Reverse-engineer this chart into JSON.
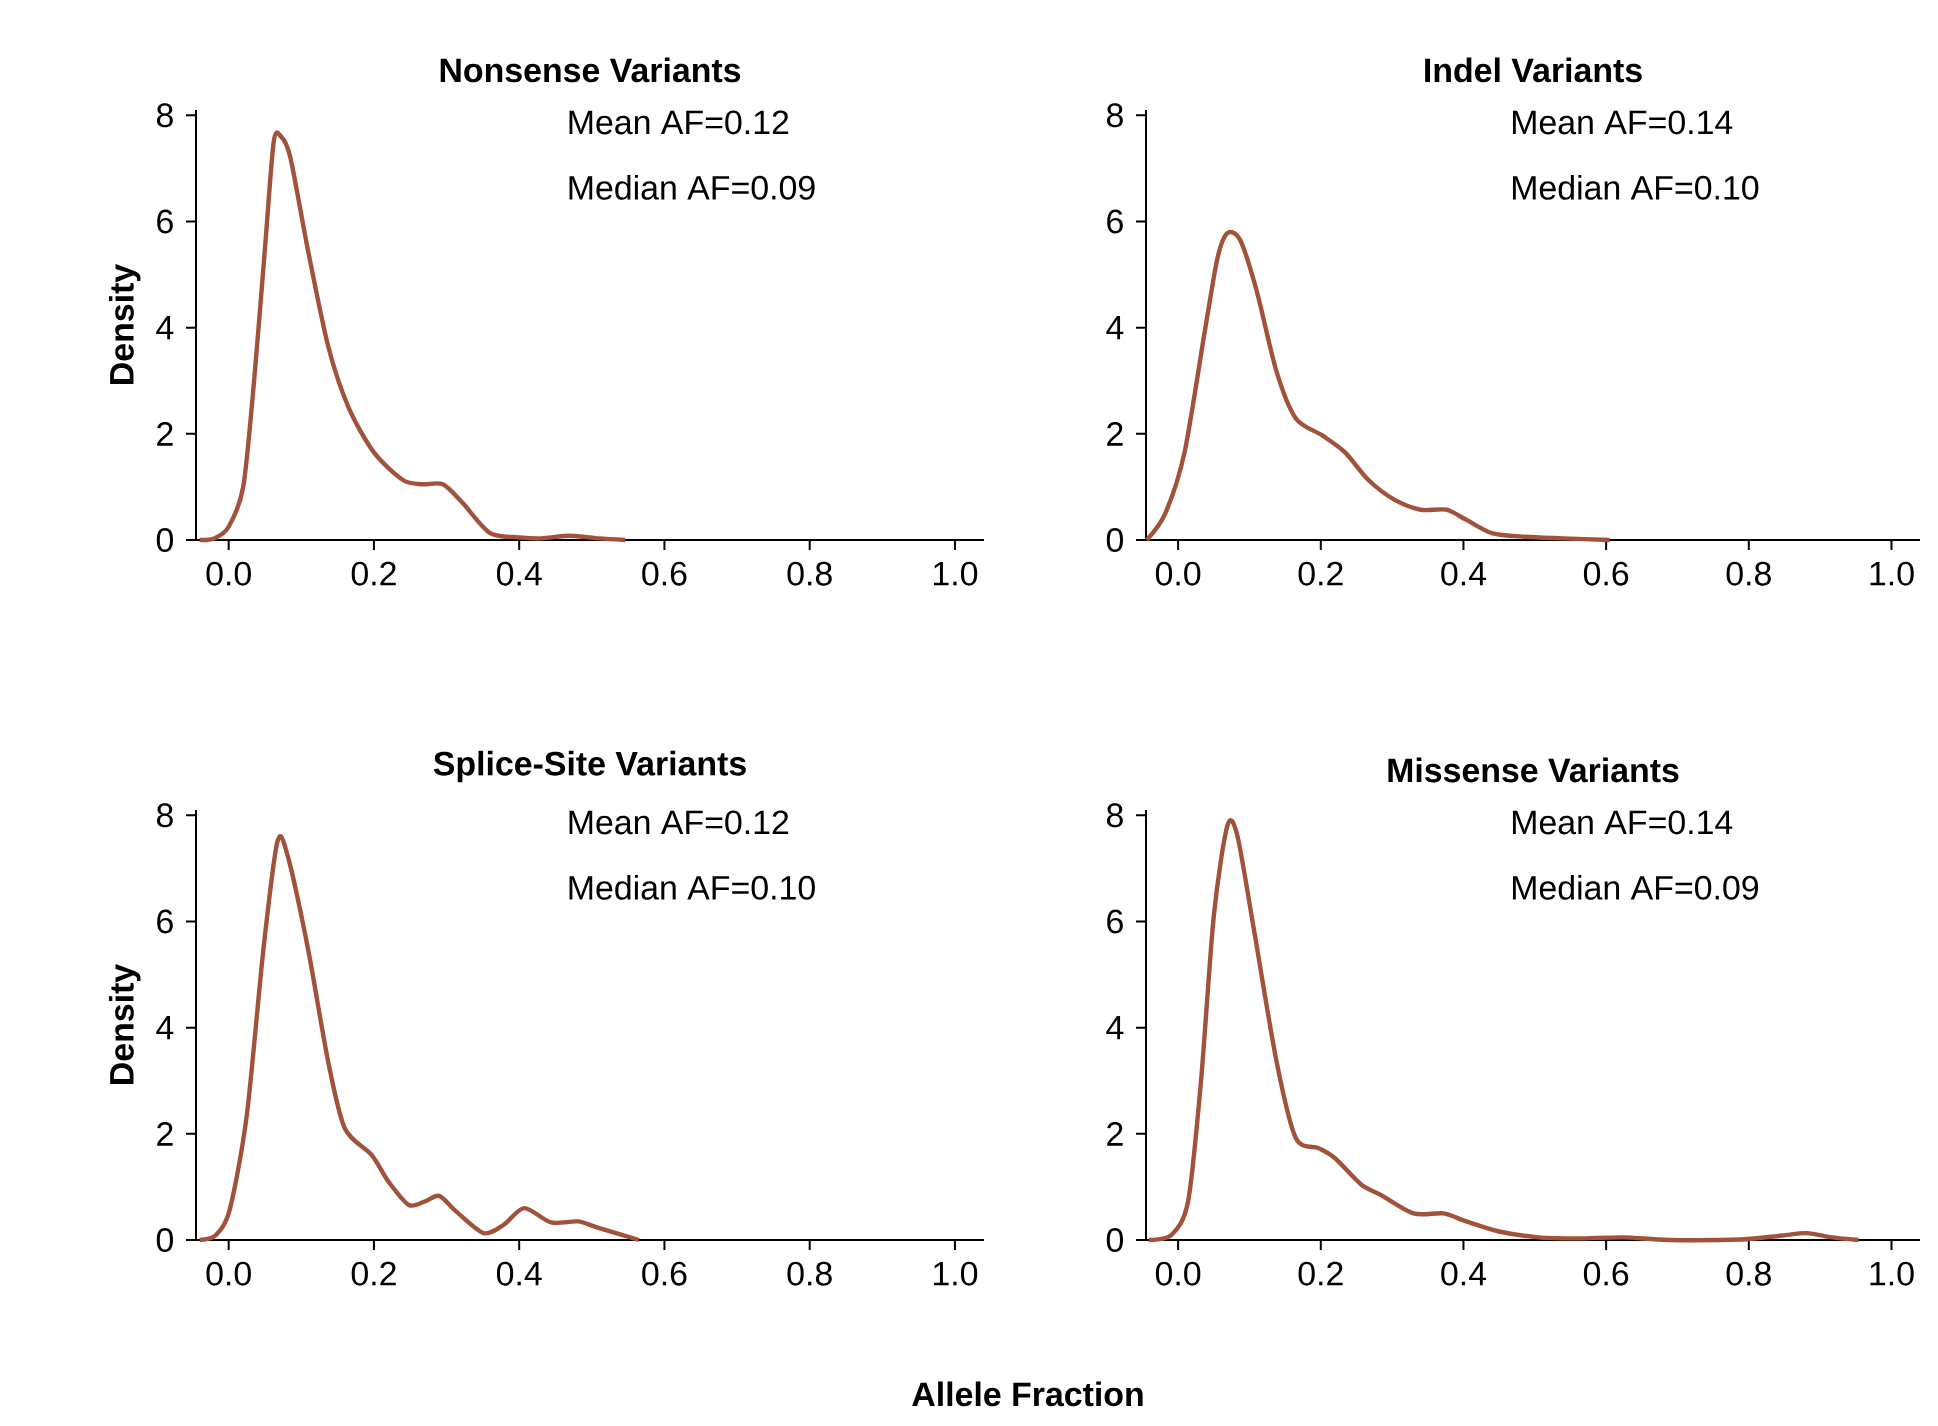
{
  "chart_data": [
    {
      "type": "line",
      "title": "Nonsense Variants",
      "ylabel": "Density",
      "annotations": [
        "Mean AF=0.12",
        "Median AF=0.09"
      ],
      "color": "#a0523a",
      "x": [
        -0.04,
        -0.02,
        0.0,
        0.02,
        0.035,
        0.05,
        0.062,
        0.072,
        0.085,
        0.11,
        0.137,
        0.165,
        0.2,
        0.24,
        0.267,
        0.295,
        0.322,
        0.36,
        0.4,
        0.43,
        0.47,
        0.51,
        0.546
      ],
      "values": [
        0,
        0.03,
        0.25,
        1.0,
        3.0,
        5.5,
        7.5,
        7.6,
        7.2,
        5.4,
        3.65,
        2.5,
        1.65,
        1.13,
        1.05,
        1.05,
        0.7,
        0.13,
        0.05,
        0.03,
        0.08,
        0.03,
        0
      ],
      "xlim": [
        -0.045,
        1.04
      ],
      "ylim": [
        0,
        8.1
      ],
      "xticks": [
        {
          "value": 0,
          "label": "0.0"
        },
        {
          "value": 0.2,
          "label": "0.2"
        },
        {
          "value": 0.4,
          "label": "0.4"
        },
        {
          "value": 0.6,
          "label": "0.6"
        },
        {
          "value": 0.8,
          "label": "0.8"
        },
        {
          "value": 1,
          "label": "1.0"
        }
      ],
      "yticks": [
        0,
        2,
        4,
        6,
        8
      ]
    },
    {
      "type": "line",
      "title": "Indel Variants",
      "annotations": [
        "Mean AF=0.14",
        "Median AF=0.10"
      ],
      "color": "#a0523a",
      "x": [
        -0.044,
        -0.018,
        0.009,
        0.037,
        0.055,
        0.069,
        0.087,
        0.11,
        0.138,
        0.165,
        0.202,
        0.234,
        0.266,
        0.303,
        0.34,
        0.376,
        0.404,
        0.44,
        0.486,
        0.54,
        0.605
      ],
      "values": [
        0,
        0.5,
        1.65,
        3.9,
        5.3,
        5.78,
        5.65,
        4.7,
        3.17,
        2.29,
        1.97,
        1.65,
        1.14,
        0.76,
        0.57,
        0.57,
        0.38,
        0.13,
        0.06,
        0.03,
        0
      ],
      "xlim": [
        -0.045,
        1.04
      ],
      "ylim": [
        0,
        8.1
      ],
      "xticks": [
        {
          "value": 0,
          "label": "0.0"
        },
        {
          "value": 0.2,
          "label": "0.2"
        },
        {
          "value": 0.4,
          "label": "0.4"
        },
        {
          "value": 0.6,
          "label": "0.6"
        },
        {
          "value": 0.8,
          "label": "0.8"
        },
        {
          "value": 1,
          "label": "1.0"
        }
      ],
      "yticks": [
        0,
        2,
        4,
        6,
        8
      ]
    },
    {
      "type": "line",
      "title": "Splice-Site Variants",
      "ylabel": "Density",
      "annotations": [
        "Mean AF=0.12",
        "Median AF=0.10"
      ],
      "color": "#a0523a",
      "x": [
        -0.04,
        -0.017,
        0.002,
        0.025,
        0.048,
        0.067,
        0.081,
        0.109,
        0.137,
        0.16,
        0.197,
        0.22,
        0.248,
        0.271,
        0.29,
        0.313,
        0.351,
        0.379,
        0.407,
        0.444,
        0.481,
        0.509,
        0.565
      ],
      "values": [
        0,
        0.1,
        0.6,
        2.36,
        5.5,
        7.5,
        7.25,
        5.5,
        3.36,
        2.1,
        1.6,
        1.1,
        0.66,
        0.73,
        0.83,
        0.54,
        0.13,
        0.29,
        0.6,
        0.33,
        0.35,
        0.23,
        0
      ],
      "xlim": [
        -0.045,
        1.04
      ],
      "ylim": [
        0,
        8.1
      ],
      "xticks": [
        {
          "value": 0,
          "label": "0.0"
        },
        {
          "value": 0.2,
          "label": "0.2"
        },
        {
          "value": 0.4,
          "label": "0.4"
        },
        {
          "value": 0.6,
          "label": "0.6"
        },
        {
          "value": 0.8,
          "label": "0.8"
        },
        {
          "value": 1,
          "label": "1.0"
        }
      ],
      "yticks": [
        0,
        2,
        4,
        6,
        8
      ]
    },
    {
      "type": "line",
      "title": "Missense Variants",
      "xlabel": "Allele Fraction",
      "annotations": [
        "Mean AF=0.14",
        "Median AF=0.09"
      ],
      "color": "#a0523a",
      "x": [
        -0.041,
        -0.009,
        0.014,
        0.032,
        0.05,
        0.069,
        0.083,
        0.106,
        0.138,
        0.165,
        0.197,
        0.22,
        0.257,
        0.284,
        0.33,
        0.372,
        0.404,
        0.45,
        0.505,
        0.56,
        0.624,
        0.688,
        0.789,
        0.844,
        0.881,
        0.917,
        0.954
      ],
      "values": [
        0,
        0.1,
        0.73,
        2.98,
        6.1,
        7.8,
        7.62,
        5.87,
        3.36,
        1.92,
        1.73,
        1.54,
        1.04,
        0.85,
        0.5,
        0.5,
        0.35,
        0.16,
        0.05,
        0.03,
        0.05,
        0,
        0.01,
        0.08,
        0.13,
        0.05,
        0
      ],
      "xlim": [
        -0.045,
        1.04
      ],
      "ylim": [
        0,
        8.1
      ],
      "xticks": [
        {
          "value": 0,
          "label": "0.0"
        },
        {
          "value": 0.2,
          "label": "0.2"
        },
        {
          "value": 0.4,
          "label": "0.4"
        },
        {
          "value": 0.6,
          "label": "0.6"
        },
        {
          "value": 0.8,
          "label": "0.8"
        },
        {
          "value": 1,
          "label": "1.0"
        }
      ],
      "yticks": [
        0,
        2,
        4,
        6,
        8
      ]
    }
  ]
}
